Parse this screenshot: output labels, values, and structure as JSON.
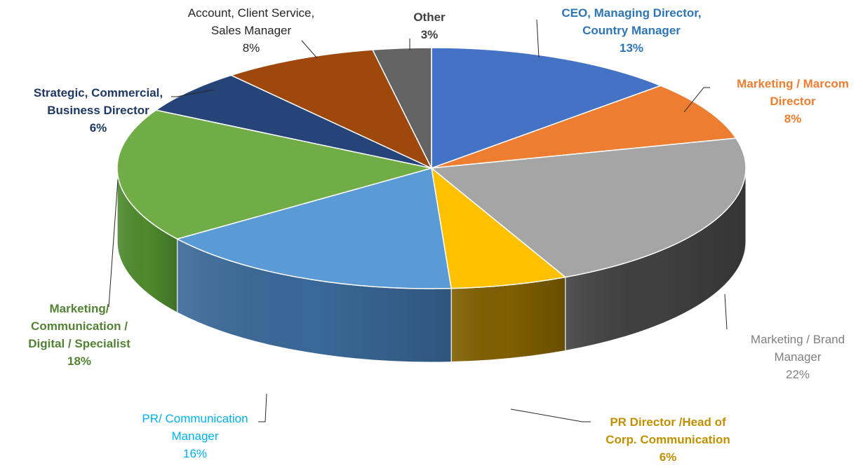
{
  "chart_data": {
    "type": "pie",
    "style": "3d",
    "slices": [
      {
        "label_lines": [
          "CEO, Managing Director,",
          "Country Manager"
        ],
        "pct_text": "13%",
        "value": 13,
        "color": "#4472C4",
        "side": "#2D4E8C",
        "label_color": "#2E75B6",
        "bold": true
      },
      {
        "label_lines": [
          "Marketing / Marcom",
          "Director"
        ],
        "pct_text": "8%",
        "value": 8,
        "color": "#ED7D31",
        "side": "#B05A1E",
        "label_color": "#ED7D31",
        "bold": true
      },
      {
        "label_lines": [
          "Marketing / Brand",
          "Manager"
        ],
        "pct_text": "22%",
        "value": 22,
        "color": "#A5A5A5",
        "side": "#404040",
        "label_color": "#808080",
        "bold": false
      },
      {
        "label_lines": [
          "PR Director /Head of",
          "Corp. Communication"
        ],
        "pct_text": "6%",
        "value": 6,
        "color": "#FFC000",
        "side": "#7F5F00",
        "label_color": "#BF9000",
        "bold": true
      },
      {
        "label_lines": [
          "PR/ Communication",
          "Manager"
        ],
        "pct_text": "16%",
        "value": 16,
        "color": "#5B9BD5",
        "side": "#3A6898",
        "label_color": "#00B0F0",
        "bold": false
      },
      {
        "label_lines": [
          "Marketing/",
          "Communication /",
          "Digital / Specialist"
        ],
        "pct_text": "18%",
        "value": 18,
        "color": "#70AD47",
        "side": "#4E8A2E",
        "label_color": "#548235",
        "bold": true
      },
      {
        "label_lines": [
          "Strategic, Commercial,",
          "Business Director"
        ],
        "pct_text": "6%",
        "value": 6,
        "color": "#264478",
        "side": "#1A2F55",
        "label_color": "#1F3864",
        "bold": true
      },
      {
        "label_lines": [
          "Account, Client Service,",
          "Sales Manager"
        ],
        "pct_text": "8%",
        "value": 8,
        "color": "#9E480E",
        "side": "#6E3209",
        "label_color": "#262626",
        "bold": false
      },
      {
        "label_lines": [
          "Other"
        ],
        "pct_text": "3%",
        "value": 3,
        "color": "#636363",
        "side": "#3F3F3F",
        "label_color": "#404040",
        "bold": true
      }
    ]
  }
}
